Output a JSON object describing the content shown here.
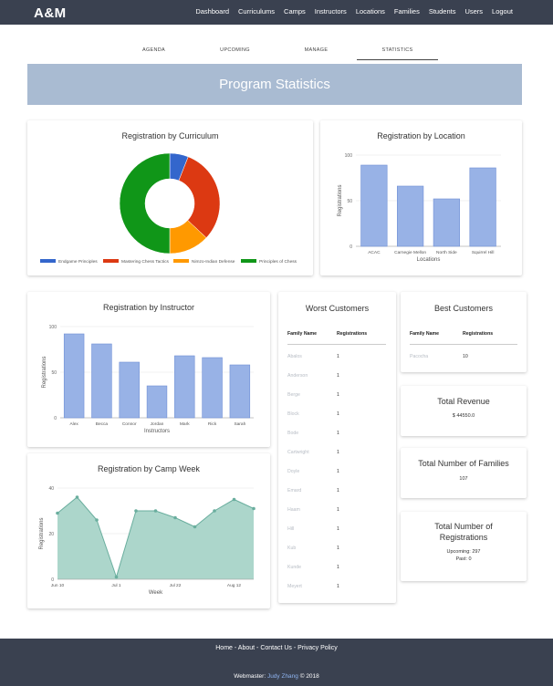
{
  "brand": "A&M",
  "nav": [
    "Dashboard",
    "Curriculums",
    "Camps",
    "Instructors",
    "Locations",
    "Families",
    "Students",
    "Users",
    "Logout"
  ],
  "tabs": [
    "AGENDA",
    "UPCOMING",
    "MANAGE",
    "STATISTICS"
  ],
  "active_tab": "STATISTICS",
  "banner_title": "Program Statistics",
  "worst_customers": {
    "title": "Worst Customers",
    "headers": [
      "Family Name",
      "Registrations"
    ],
    "rows": [
      [
        "Abalos",
        "1"
      ],
      [
        "Anderson",
        "1"
      ],
      [
        "Berge",
        "1"
      ],
      [
        "Block",
        "1"
      ],
      [
        "Bode",
        "1"
      ],
      [
        "Cartwright",
        "1"
      ],
      [
        "Doyle",
        "1"
      ],
      [
        "Emard",
        "1"
      ],
      [
        "Haam",
        "1"
      ],
      [
        "Hill",
        "1"
      ],
      [
        "Kub",
        "1"
      ],
      [
        "Kunde",
        "1"
      ],
      [
        "Meyert",
        "1"
      ]
    ]
  },
  "best_customers": {
    "title": "Best Customers",
    "headers": [
      "Family Name",
      "Registrations"
    ],
    "rows": [
      [
        "Pacocha",
        "10"
      ]
    ]
  },
  "total_revenue": {
    "title": "Total Revenue",
    "value": "$ 44550.0"
  },
  "total_families": {
    "title": "Total Number of Families",
    "value": "107"
  },
  "total_registrations": {
    "title_line1": "Total Number of",
    "title_line2": "Registrations",
    "upcoming": "Upcoming: 297",
    "past": "Past: 0"
  },
  "footer": {
    "links": [
      "Home",
      "About",
      "Contact Us",
      "Privacy Policy"
    ],
    "webmaster_label": "Webmaster:",
    "webmaster_name": "Judy Zhang",
    "copyright": "© 2018"
  },
  "chart_data": [
    {
      "id": "curriculum",
      "type": "pie",
      "title": "Registration by Curriculum",
      "categories": [
        "Endgame Principles",
        "Mastering Chess Tactics",
        "Nimzo-Indian Defense",
        "Principles of Chess"
      ],
      "values": [
        6,
        31,
        13,
        50
      ],
      "colors": [
        "#3366cc",
        "#dc3912",
        "#ff9900",
        "#109618"
      ],
      "legend": "bottom"
    },
    {
      "id": "location",
      "type": "bar",
      "title": "Registration by Location",
      "categories": [
        "ACAC",
        "Carnegie Mellon",
        "North Side",
        "Squirrel Hill"
      ],
      "values": [
        89,
        66,
        52,
        86
      ],
      "xlabel": "Locations",
      "ylabel": "Registrations",
      "ylim": [
        0,
        100
      ],
      "yticks": [
        0,
        50,
        100
      ],
      "color": "#98b2e6"
    },
    {
      "id": "instructor",
      "type": "bar",
      "title": "Registration by Instructor",
      "categories": [
        "Alex",
        "Becca",
        "Connor",
        "Jordan",
        "Mark",
        "Rick",
        "Sarah"
      ],
      "values": [
        92,
        81,
        61,
        35,
        68,
        66,
        58
      ],
      "xlabel": "Instructors",
      "ylabel": "Registrations",
      "ylim": [
        0,
        100
      ],
      "yticks": [
        0,
        50,
        100
      ],
      "color": "#98b2e6"
    },
    {
      "id": "campweek",
      "type": "area",
      "title": "Registration by Camp Week",
      "x": [
        0,
        1,
        2,
        3,
        4,
        5,
        6,
        7,
        8,
        9,
        10
      ],
      "values": [
        29,
        36,
        26,
        1,
        30,
        30,
        27,
        23,
        30,
        35,
        31
      ],
      "xticks": [
        "Jun 10",
        "Jul 1",
        "Jul 22",
        "Aug 12"
      ],
      "xtick_positions": [
        0,
        3,
        6,
        9
      ],
      "xlabel": "Week",
      "ylabel": "Registrations",
      "ylim": [
        0,
        40
      ],
      "yticks": [
        0,
        20,
        40
      ],
      "color": "#6aae9e"
    }
  ]
}
